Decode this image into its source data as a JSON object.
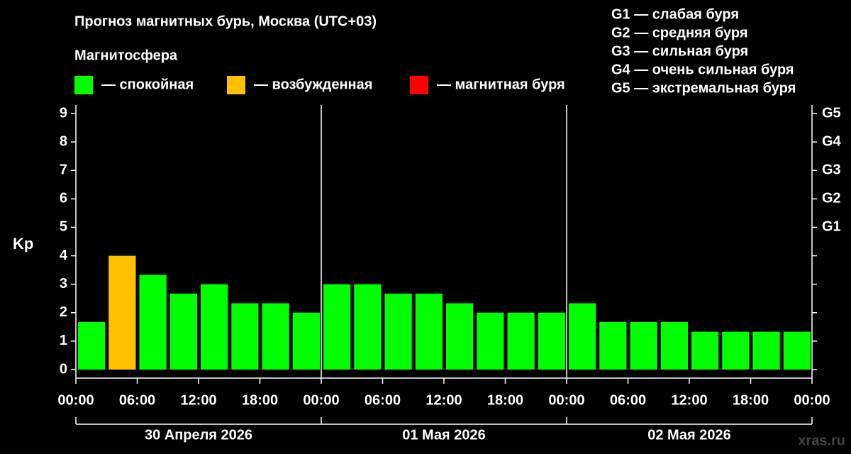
{
  "chart_data": {
    "type": "bar",
    "title": "Прогноз магнитных бурь, Москва (UTC+03)",
    "legend_title": "Магнитосфера",
    "legend": [
      {
        "name": "— спокойная",
        "color": "#00ff00"
      },
      {
        "name": "— возбужденная",
        "color": "#ffc000"
      },
      {
        "name": "— магнитная буря",
        "color": "#ff0000"
      }
    ],
    "storm_levels": [
      "G1 — слабая буря",
      "G2 — средняя буря",
      "G3 — сильная буря",
      "G4 — очень сильная буря",
      "G5 — экстремальная буря"
    ],
    "y_label": "Kp",
    "days": [
      "30 Апреля 2026",
      "01 Мая 2026",
      "02 Мая 2026"
    ],
    "values": [
      1.67,
      4,
      3.33,
      2.67,
      3,
      2.33,
      2.33,
      2,
      3,
      3,
      2.67,
      2.67,
      2.33,
      2,
      2,
      2,
      2.33,
      1.67,
      1.67,
      1.67,
      1.33,
      1.33,
      1.33,
      1.33
    ],
    "colors": [
      "#00ff00",
      "#ffc000",
      "#00ff00",
      "#00ff00",
      "#00ff00",
      "#00ff00",
      "#00ff00",
      "#00ff00",
      "#00ff00",
      "#00ff00",
      "#00ff00",
      "#00ff00",
      "#00ff00",
      "#00ff00",
      "#00ff00",
      "#00ff00",
      "#00ff00",
      "#00ff00",
      "#00ff00",
      "#00ff00",
      "#00ff00",
      "#00ff00",
      "#00ff00",
      "#00ff00"
    ],
    "xlim": [
      0,
      72
    ],
    "xticks": [
      {
        "value": 0,
        "label": "00:00"
      },
      {
        "value": 6,
        "label": "06:00"
      },
      {
        "value": 12,
        "label": "12:00"
      },
      {
        "value": 18,
        "label": "18:00"
      },
      {
        "value": 24,
        "label": "00:00"
      },
      {
        "value": 30,
        "label": "06:00"
      },
      {
        "value": 36,
        "label": "12:00"
      },
      {
        "value": 42,
        "label": "18:00"
      },
      {
        "value": 48,
        "label": "00:00"
      },
      {
        "value": 54,
        "label": "06:00"
      },
      {
        "value": 60,
        "label": "12:00"
      },
      {
        "value": 66,
        "label": "18:00"
      },
      {
        "value": 72,
        "label": "00:00"
      }
    ],
    "ylim": [
      -0.3,
      9.3
    ],
    "yticks": [
      0,
      1,
      2,
      3,
      4,
      5,
      6,
      7,
      8,
      9
    ],
    "y2ticks": [
      {
        "value": 5,
        "label": "G1"
      },
      {
        "value": 6,
        "label": "G2"
      },
      {
        "value": 7,
        "label": "G3"
      },
      {
        "value": 8,
        "label": "G4"
      },
      {
        "value": 9,
        "label": "G5"
      }
    ],
    "watermark": "xras.ru"
  }
}
